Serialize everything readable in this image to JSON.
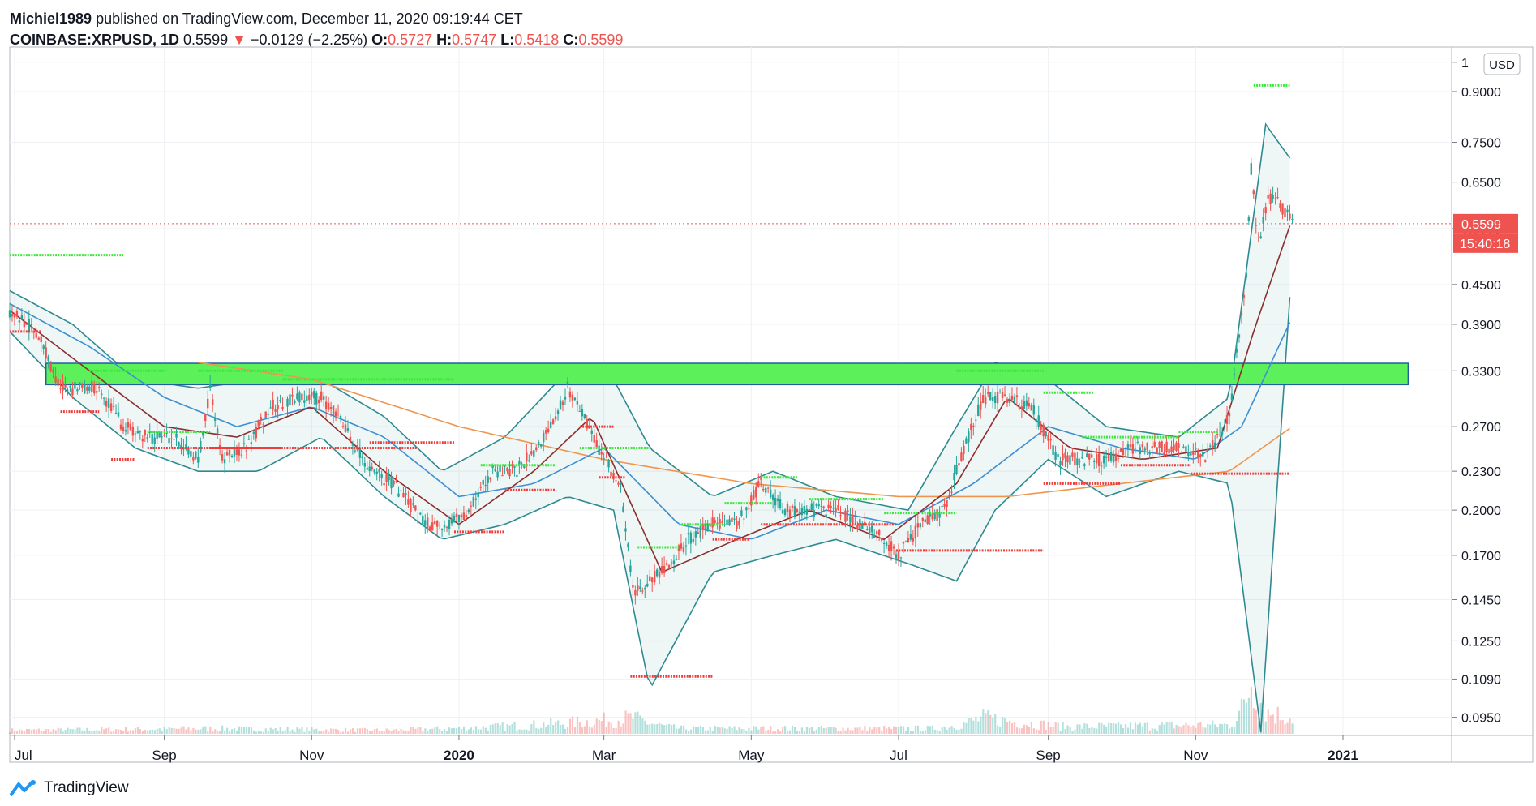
{
  "header": {
    "author": "Michiel1989",
    "published_text": "published on TradingView.com, December 11, 2020 09:19:44 CET",
    "symbol": "COINBASE:XRPUSD, 1D",
    "last": "0.5599",
    "change": "−0.0129 (−2.25%)",
    "o_label": "O:",
    "o_value": "0.5727",
    "h_label": "H:",
    "h_value": "0.5747",
    "l_label": "L:",
    "l_value": "0.5418",
    "c_label": "C:",
    "c_value": "0.5599"
  },
  "footer": {
    "brand": "TradingView",
    "logo_icon": "tradingview-logo-icon"
  },
  "price_axis": {
    "currency": "USD",
    "last_price_label": "0.5599",
    "countdown_label": "15:40:18"
  },
  "colors": {
    "up": "#26a69a",
    "down": "#ef5350",
    "zone": "#5cf05a",
    "bollinger": "#2e8a91",
    "ma_fast": "#8b2e2e",
    "ma_mid": "#3d8fd1",
    "ma_slow": "#f0954d",
    "resistance": "#39e839",
    "support": "#f03b3b"
  },
  "chart_data": {
    "type": "candlestick",
    "title": "",
    "xlabel": "",
    "ylabel": "",
    "scale": "log",
    "y_ticks": [
      0.095,
      0.109,
      0.125,
      0.145,
      0.17,
      0.2,
      0.23,
      0.27,
      0.33,
      0.39,
      0.45,
      0.55,
      0.65,
      0.75,
      0.9,
      1
    ],
    "y_tick_labels": [
      "0.0950",
      "0.1090",
      "0.1250",
      "0.1450",
      "0.1700",
      "0.2000",
      "0.2300",
      "0.2700",
      "0.3300",
      "0.3900",
      "0.4500",
      "0.5500",
      "0.6500",
      "0.7500",
      "0.9000",
      "1"
    ],
    "ylim": [
      0.089,
      1.02
    ],
    "x_ticks": [
      "2019-07-01",
      "2019-09-01",
      "2019-11-01",
      "2020-01-01",
      "2020-03-01",
      "2020-05-01",
      "2020-07-01",
      "2020-09-01",
      "2020-11-01",
      "2021-01-01"
    ],
    "x_tick_labels": [
      "Jul",
      "Sep",
      "Nov",
      "2020",
      "Mar",
      "May",
      "Jul",
      "Sep",
      "Nov",
      "2021"
    ],
    "xlim": [
      "2019-06-29",
      "2021-02-15"
    ],
    "last_price": 0.5599,
    "zone": {
      "from": "2019-07-14",
      "to": "2021-01-28",
      "low": 0.314,
      "high": 0.339
    },
    "price_path": [
      [
        "2019-06-29",
        0.41
      ],
      [
        "2019-07-10",
        0.38
      ],
      [
        "2019-07-20",
        0.31
      ],
      [
        "2019-08-05",
        0.31
      ],
      [
        "2019-08-15",
        0.27
      ],
      [
        "2019-08-25",
        0.26
      ],
      [
        "2019-09-05",
        0.26
      ],
      [
        "2019-09-15",
        0.24
      ],
      [
        "2019-09-20",
        0.31
      ],
      [
        "2019-09-25",
        0.24
      ],
      [
        "2019-10-05",
        0.25
      ],
      [
        "2019-10-15",
        0.29
      ],
      [
        "2019-10-28",
        0.3
      ],
      [
        "2019-11-05",
        0.3
      ],
      [
        "2019-11-15",
        0.27
      ],
      [
        "2019-11-25",
        0.23
      ],
      [
        "2019-12-05",
        0.22
      ],
      [
        "2019-12-18",
        0.19
      ],
      [
        "2019-12-28",
        0.19
      ],
      [
        "2020-01-05",
        0.2
      ],
      [
        "2020-01-15",
        0.23
      ],
      [
        "2020-01-25",
        0.23
      ],
      [
        "2020-02-05",
        0.26
      ],
      [
        "2020-02-15",
        0.31
      ],
      [
        "2020-02-22",
        0.28
      ],
      [
        "2020-03-01",
        0.24
      ],
      [
        "2020-03-08",
        0.22
      ],
      [
        "2020-03-13",
        0.15
      ],
      [
        "2020-03-25",
        0.16
      ],
      [
        "2020-04-05",
        0.18
      ],
      [
        "2020-04-15",
        0.19
      ],
      [
        "2020-04-25",
        0.19
      ],
      [
        "2020-05-05",
        0.22
      ],
      [
        "2020-05-15",
        0.2
      ],
      [
        "2020-05-25",
        0.2
      ],
      [
        "2020-06-05",
        0.2
      ],
      [
        "2020-06-15",
        0.19
      ],
      [
        "2020-06-25",
        0.18
      ],
      [
        "2020-07-01",
        0.17
      ],
      [
        "2020-07-10",
        0.19
      ],
      [
        "2020-07-20",
        0.2
      ],
      [
        "2020-07-28",
        0.25
      ],
      [
        "2020-08-05",
        0.3
      ],
      [
        "2020-08-15",
        0.3
      ],
      [
        "2020-08-25",
        0.29
      ],
      [
        "2020-09-05",
        0.24
      ],
      [
        "2020-09-15",
        0.24
      ],
      [
        "2020-09-25",
        0.24
      ],
      [
        "2020-10-05",
        0.25
      ],
      [
        "2020-10-15",
        0.25
      ],
      [
        "2020-10-25",
        0.25
      ],
      [
        "2020-11-05",
        0.24
      ],
      [
        "2020-11-15",
        0.28
      ],
      [
        "2020-11-22",
        0.47
      ],
      [
        "2020-11-24",
        0.68
      ],
      [
        "2020-11-27",
        0.52
      ],
      [
        "2020-12-01",
        0.62
      ],
      [
        "2020-12-06",
        0.6
      ],
      [
        "2020-12-11",
        0.5599
      ]
    ],
    "bollinger_upper": [
      [
        "2019-06-29",
        0.44
      ],
      [
        "2019-07-25",
        0.39
      ],
      [
        "2019-08-20",
        0.32
      ],
      [
        "2019-09-15",
        0.31
      ],
      [
        "2019-10-10",
        0.32
      ],
      [
        "2019-11-05",
        0.32
      ],
      [
        "2019-12-01",
        0.28
      ],
      [
        "2019-12-25",
        0.23
      ],
      [
        "2020-01-20",
        0.26
      ],
      [
        "2020-02-15",
        0.33
      ],
      [
        "2020-03-05",
        0.32
      ],
      [
        "2020-03-20",
        0.25
      ],
      [
        "2020-04-15",
        0.21
      ],
      [
        "2020-05-10",
        0.23
      ],
      [
        "2020-06-05",
        0.21
      ],
      [
        "2020-07-05",
        0.2
      ],
      [
        "2020-07-25",
        0.27
      ],
      [
        "2020-08-10",
        0.34
      ],
      [
        "2020-09-01",
        0.32
      ],
      [
        "2020-09-25",
        0.27
      ],
      [
        "2020-10-25",
        0.26
      ],
      [
        "2020-11-15",
        0.3
      ],
      [
        "2020-11-30",
        0.8
      ],
      [
        "2020-12-11",
        0.7
      ]
    ],
    "bollinger_lower": [
      [
        "2019-06-29",
        0.38
      ],
      [
        "2019-07-25",
        0.3
      ],
      [
        "2019-08-20",
        0.25
      ],
      [
        "2019-09-15",
        0.23
      ],
      [
        "2019-10-10",
        0.23
      ],
      [
        "2019-11-05",
        0.26
      ],
      [
        "2019-12-01",
        0.21
      ],
      [
        "2019-12-25",
        0.18
      ],
      [
        "2020-01-20",
        0.19
      ],
      [
        "2020-02-15",
        0.21
      ],
      [
        "2020-03-05",
        0.2
      ],
      [
        "2020-03-20",
        0.105
      ],
      [
        "2020-04-15",
        0.16
      ],
      [
        "2020-05-10",
        0.17
      ],
      [
        "2020-06-05",
        0.18
      ],
      [
        "2020-07-05",
        0.165
      ],
      [
        "2020-07-25",
        0.155
      ],
      [
        "2020-08-10",
        0.2
      ],
      [
        "2020-09-01",
        0.24
      ],
      [
        "2020-09-25",
        0.21
      ],
      [
        "2020-10-25",
        0.23
      ],
      [
        "2020-11-15",
        0.22
      ],
      [
        "2020-11-28",
        0.09
      ],
      [
        "2020-12-11",
        0.49
      ]
    ],
    "ma_fast": [
      [
        "2019-06-29",
        0.41
      ],
      [
        "2019-08-01",
        0.33
      ],
      [
        "2019-09-01",
        0.27
      ],
      [
        "2019-10-01",
        0.26
      ],
      [
        "2019-11-01",
        0.29
      ],
      [
        "2019-12-01",
        0.23
      ],
      [
        "2020-01-01",
        0.19
      ],
      [
        "2020-02-01",
        0.23
      ],
      [
        "2020-02-25",
        0.28
      ],
      [
        "2020-03-25",
        0.16
      ],
      [
        "2020-04-25",
        0.18
      ],
      [
        "2020-05-25",
        0.2
      ],
      [
        "2020-06-25",
        0.18
      ],
      [
        "2020-07-25",
        0.22
      ],
      [
        "2020-08-15",
        0.3
      ],
      [
        "2020-09-10",
        0.25
      ],
      [
        "2020-10-10",
        0.24
      ],
      [
        "2020-11-10",
        0.25
      ],
      [
        "2020-11-25",
        0.38
      ],
      [
        "2020-12-11",
        0.57
      ]
    ],
    "ma_mid": [
      [
        "2019-06-29",
        0.42
      ],
      [
        "2019-08-01",
        0.36
      ],
      [
        "2019-09-01",
        0.3
      ],
      [
        "2019-10-01",
        0.27
      ],
      [
        "2019-11-01",
        0.29
      ],
      [
        "2019-12-01",
        0.26
      ],
      [
        "2020-01-01",
        0.21
      ],
      [
        "2020-02-01",
        0.22
      ],
      [
        "2020-03-01",
        0.25
      ],
      [
        "2020-04-01",
        0.19
      ],
      [
        "2020-05-01",
        0.18
      ],
      [
        "2020-06-01",
        0.2
      ],
      [
        "2020-07-01",
        0.19
      ],
      [
        "2020-08-01",
        0.22
      ],
      [
        "2020-09-01",
        0.27
      ],
      [
        "2020-10-01",
        0.25
      ],
      [
        "2020-11-01",
        0.24
      ],
      [
        "2020-11-20",
        0.27
      ],
      [
        "2020-12-11",
        0.4
      ]
    ],
    "ma_slow": [
      [
        "2019-09-15",
        0.34
      ],
      [
        "2019-11-01",
        0.32
      ],
      [
        "2020-01-01",
        0.27
      ],
      [
        "2020-03-01",
        0.24
      ],
      [
        "2020-05-01",
        0.22
      ],
      [
        "2020-07-01",
        0.21
      ],
      [
        "2020-08-15",
        0.21
      ],
      [
        "2020-10-01",
        0.22
      ],
      [
        "2020-11-15",
        0.23
      ],
      [
        "2020-12-11",
        0.27
      ]
    ],
    "resistance_levels": [
      [
        "2019-06-29",
        "2019-08-15",
        0.5
      ],
      [
        "2019-08-01",
        "2019-09-02",
        0.33
      ],
      [
        "2019-09-15",
        "2019-10-20",
        0.33
      ],
      [
        "2019-10-20",
        "2019-12-30",
        0.32
      ],
      [
        "2019-08-25",
        "2019-09-20",
        0.265
      ],
      [
        "2020-01-10",
        "2020-02-10",
        0.235
      ],
      [
        "2020-02-20",
        "2020-03-20",
        0.25
      ],
      [
        "2020-03-15",
        "2020-04-01",
        0.175
      ],
      [
        "2020-04-01",
        "2020-04-20",
        0.19
      ],
      [
        "2020-04-20",
        "2020-05-10",
        0.205
      ],
      [
        "2020-05-05",
        "2020-05-20",
        0.225
      ],
      [
        "2020-05-25",
        "2020-06-25",
        0.208
      ],
      [
        "2020-06-25",
        "2020-07-25",
        0.198
      ],
      [
        "2020-07-25",
        "2020-08-30",
        0.33
      ],
      [
        "2020-08-30",
        "2020-09-20",
        0.305
      ],
      [
        "2020-09-15",
        "2020-10-25",
        0.26
      ],
      [
        "2020-10-25",
        "2020-11-10",
        0.265
      ],
      [
        "2020-11-25",
        "2020-12-10",
        0.92
      ]
    ],
    "support_levels": [
      [
        "2019-06-29",
        "2019-07-12",
        0.38
      ],
      [
        "2019-07-20",
        "2019-08-05",
        0.285
      ],
      [
        "2019-08-10",
        "2019-08-20",
        0.24
      ],
      [
        "2019-08-25",
        "2019-12-15",
        0.25
      ],
      [
        "2019-09-20",
        "2019-10-20",
        0.25
      ],
      [
        "2019-11-25",
        "2019-12-30",
        0.255
      ],
      [
        "2019-12-30",
        "2020-01-20",
        0.185
      ],
      [
        "2020-01-20",
        "2020-02-10",
        0.215
      ],
      [
        "2020-02-20",
        "2020-03-05",
        0.27
      ],
      [
        "2020-02-28",
        "2020-03-10",
        0.225
      ],
      [
        "2020-03-12",
        "2020-04-15",
        0.11
      ],
      [
        "2020-04-15",
        "2020-04-30",
        0.18
      ],
      [
        "2020-05-05",
        "2020-06-30",
        0.19
      ],
      [
        "2020-06-30",
        "2020-08-30",
        0.173
      ],
      [
        "2020-08-30",
        "2020-10-01",
        0.22
      ],
      [
        "2020-10-01",
        "2020-10-30",
        0.235
      ],
      [
        "2020-10-30",
        "2020-12-10",
        0.228
      ]
    ],
    "volume_path": [
      [
        "2019-06-29",
        0.2
      ],
      [
        "2019-09-20",
        0.3
      ],
      [
        "2019-12-01",
        0.2
      ],
      [
        "2020-02-15",
        0.6
      ],
      [
        "2020-03-13",
        0.9
      ],
      [
        "2020-04-01",
        0.3
      ],
      [
        "2020-07-15",
        0.3
      ],
      [
        "2020-08-05",
        0.9
      ],
      [
        "2020-09-10",
        0.4
      ],
      [
        "2020-11-15",
        0.5
      ],
      [
        "2020-11-24",
        3.0
      ],
      [
        "2020-12-01",
        1.2
      ],
      [
        "2020-12-11",
        0.9
      ]
    ]
  }
}
